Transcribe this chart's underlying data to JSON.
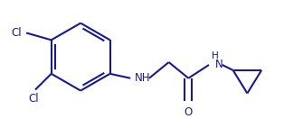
{
  "background_color": "#ffffff",
  "line_color": "#1a1a8c",
  "line_width": 1.5,
  "text_color": "#1a1a8c",
  "label_fontsize": 8.5,
  "figsize": [
    3.35,
    1.32
  ],
  "dpi": 100,
  "xlim": [
    0,
    335
  ],
  "ylim": [
    0,
    132
  ]
}
